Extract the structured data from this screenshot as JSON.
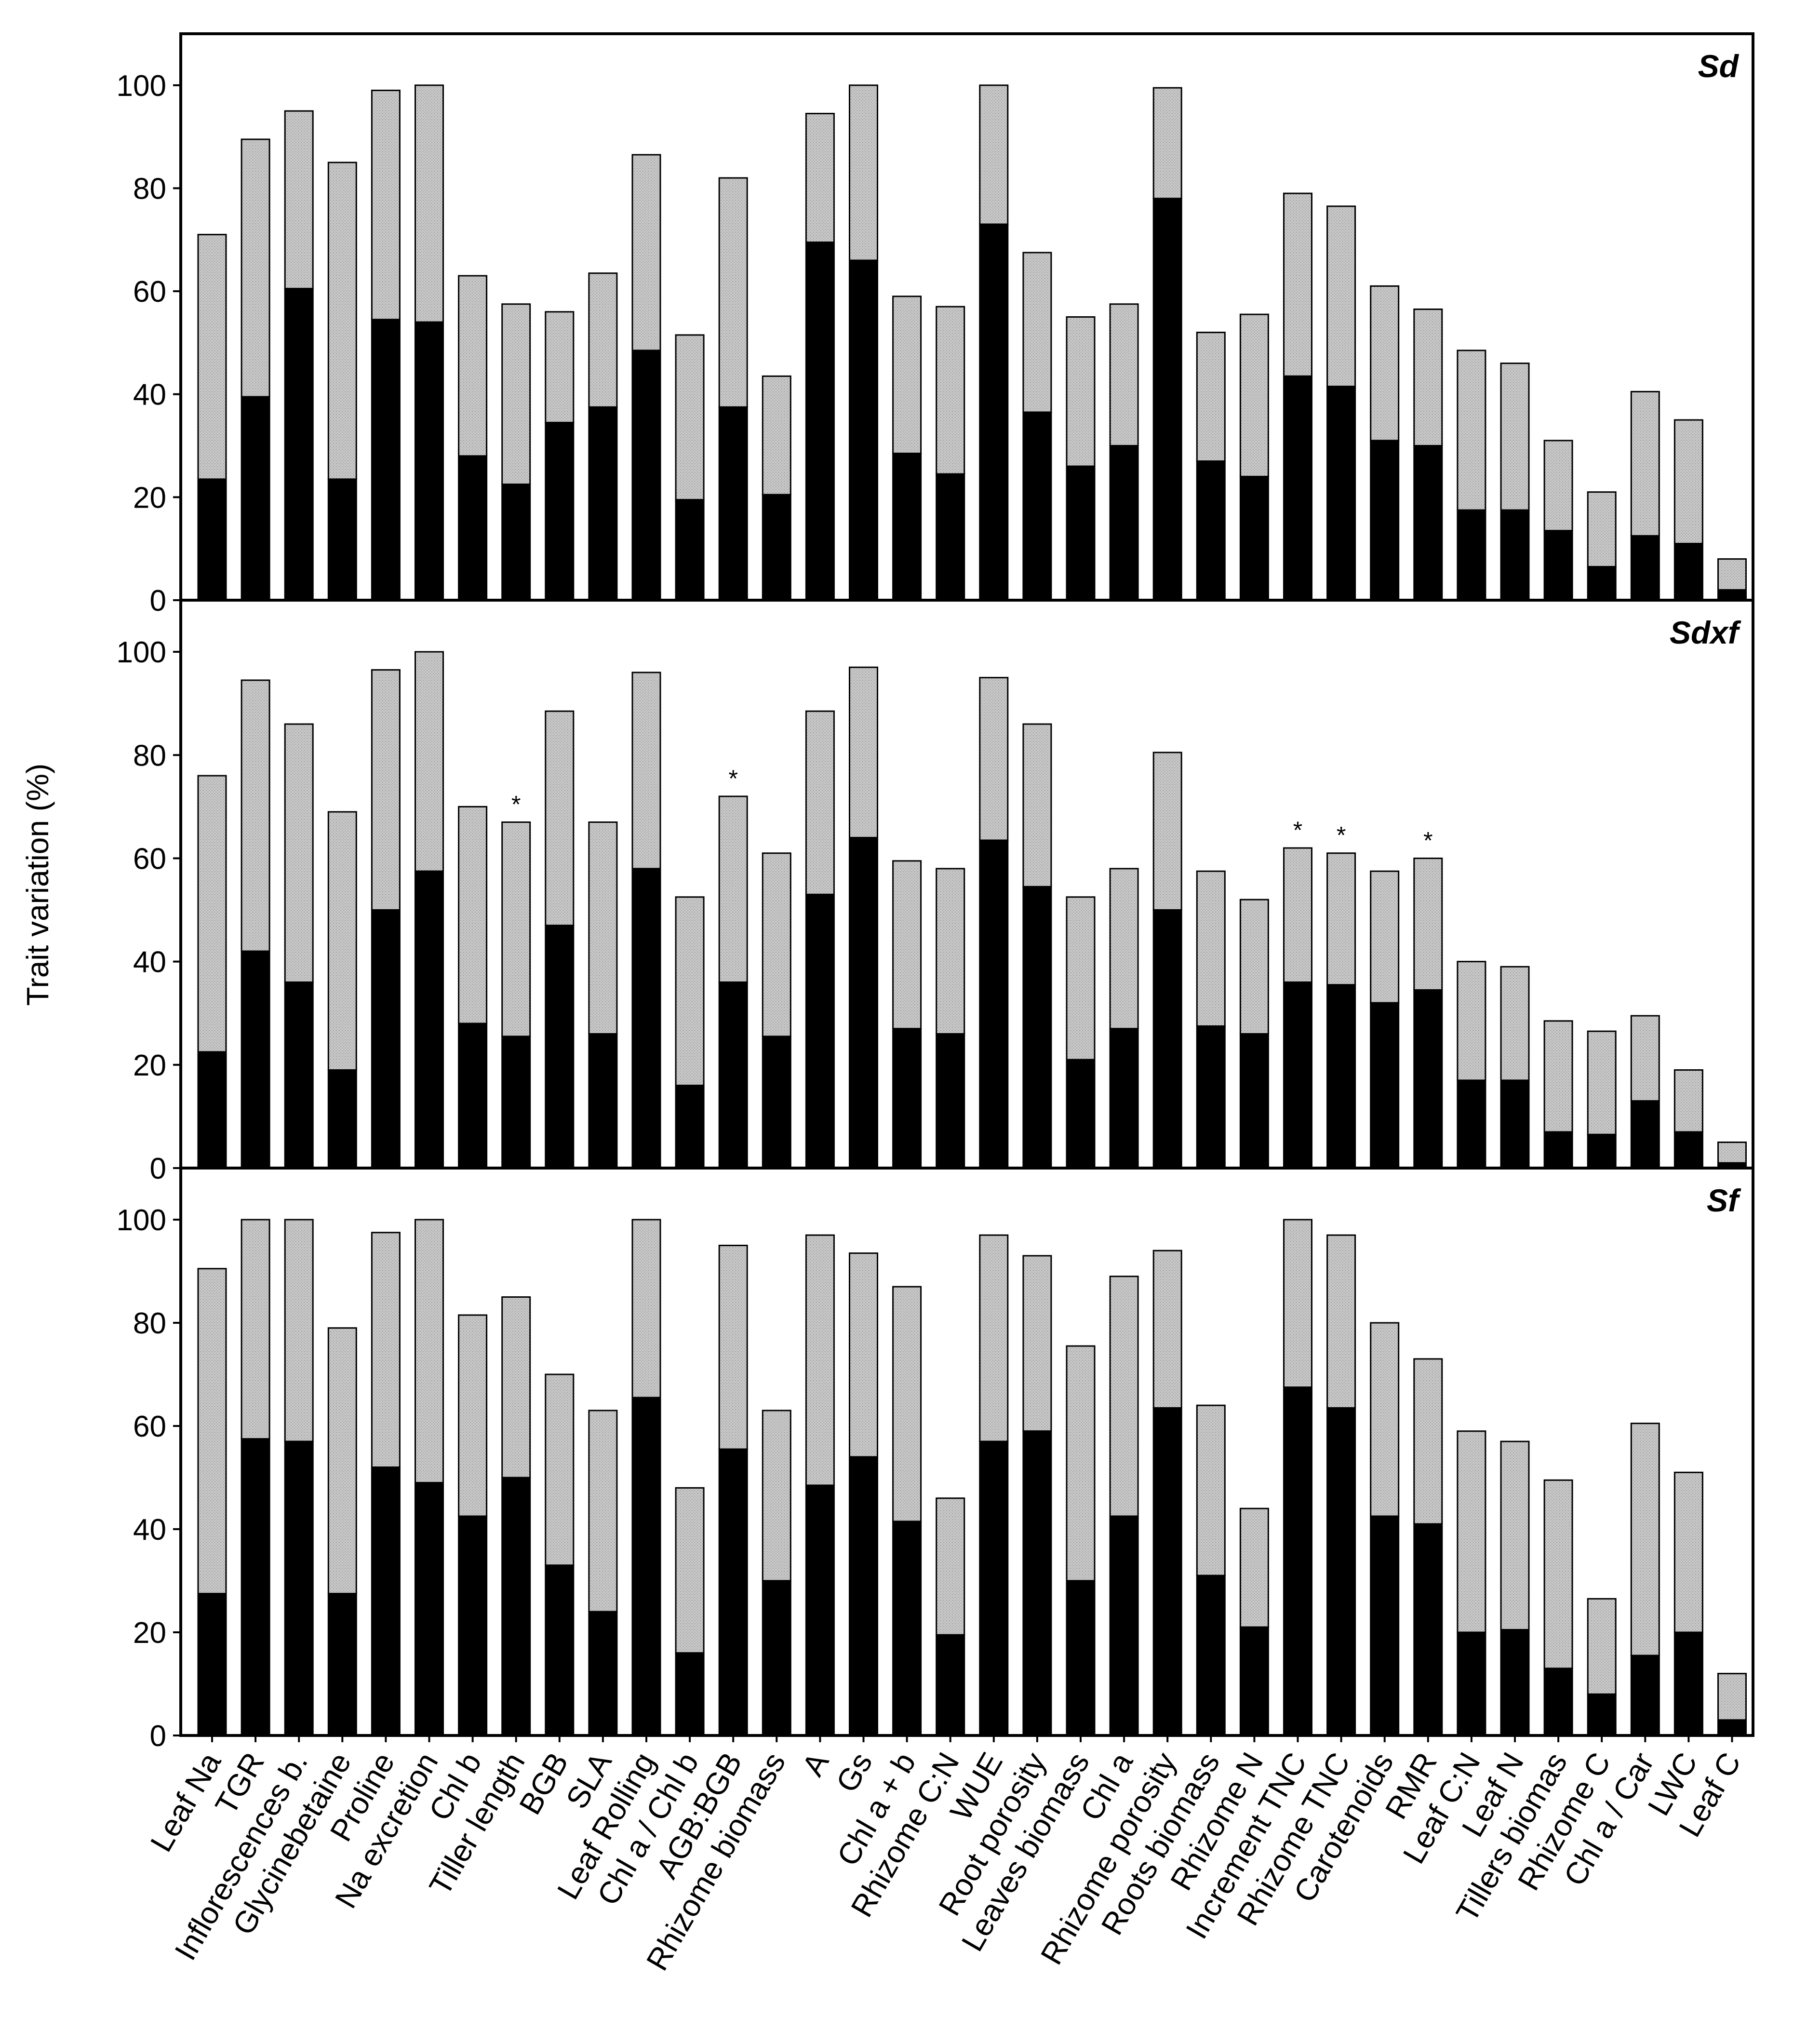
{
  "chart_data": {
    "type": "bar",
    "stacked": true,
    "ylabel": "Trait variation (%)",
    "ylim": [
      0,
      110
    ],
    "yticks": [
      0,
      20,
      40,
      60,
      80,
      100
    ],
    "colors": {
      "lower": "#000000",
      "upper": "#c4c4c4",
      "outline": "#000000"
    },
    "categories": [
      "Leaf Na",
      "TGR",
      "Inflorescences b.",
      "Glycinebetaine",
      "Proline",
      "Na excretion",
      "Chl b",
      "Tiller length",
      "BGB",
      "SLA",
      "Leaf Rolling",
      "Chl a / Chl b",
      "AGB:BGB",
      "Rhizome biomass",
      "A",
      "Gs",
      "Chl a + b",
      "Rhizome C:N",
      "WUE",
      "Root porosity",
      "Leaves biomass",
      "Chl a",
      "Rhizome porosity",
      "Roots biomass",
      "Rhizome N",
      "Increment TNC",
      "Rhizome TNC",
      "Carotenoids",
      "RMR",
      "Leaf C:N",
      "Leaf N",
      "Tillers biomas",
      "Rhizome C",
      "Chl a / Car",
      "LWC",
      "Leaf C"
    ],
    "panels": [
      {
        "label": "Sd",
        "lower": [
          23.5,
          39.5,
          60.5,
          23.5,
          54.5,
          54,
          28,
          22.5,
          34.5,
          37.5,
          48.5,
          19.5,
          37.5,
          20.5,
          69.5,
          66,
          28.5,
          24.5,
          73,
          36.5,
          26,
          30,
          78,
          27,
          24,
          43.5,
          41.5,
          31,
          30,
          17.5,
          17.5,
          13.5,
          6.5,
          12.5,
          11,
          2
        ],
        "total": [
          71,
          89.5,
          95,
          85,
          99,
          100,
          63,
          57.5,
          56,
          63.5,
          86.5,
          51.5,
          82,
          43.5,
          94.5,
          100,
          59,
          57,
          100,
          67.5,
          55,
          57.5,
          99.5,
          52,
          55.5,
          79,
          76.5,
          61,
          56.5,
          48.5,
          46,
          31,
          21,
          40.5,
          35,
          8
        ],
        "stars": []
      },
      {
        "label": "Sdxf",
        "lower": [
          22.5,
          42,
          36,
          19,
          50,
          57.5,
          28,
          25.5,
          47,
          26,
          58,
          16,
          36,
          25.5,
          53,
          64,
          27,
          26,
          63.5,
          54.5,
          21,
          27,
          50,
          27.5,
          26,
          36,
          35.5,
          32,
          34.5,
          17,
          17,
          7,
          6.5,
          13,
          7,
          1
        ],
        "total": [
          76,
          94.5,
          86,
          69,
          96.5,
          100,
          70,
          67,
          88.5,
          67,
          96,
          52.5,
          72,
          61,
          88.5,
          97,
          59.5,
          58,
          95,
          86,
          52.5,
          58,
          80.5,
          57.5,
          52,
          62,
          61,
          57.5,
          60,
          40,
          39,
          28.5,
          26.5,
          29.5,
          19,
          5
        ],
        "stars": [
          7,
          12,
          25,
          26,
          28
        ]
      },
      {
        "label": "Sf",
        "lower": [
          27.5,
          57.5,
          57,
          27.5,
          52,
          49,
          42.5,
          50,
          33,
          24,
          65.5,
          16,
          55.5,
          30,
          48.5,
          54,
          41.5,
          19.5,
          57,
          59,
          30,
          42.5,
          63.5,
          31,
          21,
          67.5,
          63.5,
          42.5,
          41,
          20,
          20.5,
          13,
          8,
          15.5,
          20,
          3
        ],
        "total": [
          90.5,
          100,
          100,
          79,
          97.5,
          100,
          81.5,
          85,
          70,
          63,
          100,
          48,
          95,
          63,
          97,
          93.5,
          87,
          46,
          97,
          93,
          75.5,
          89,
          94,
          64,
          44,
          100,
          97,
          80,
          73,
          59,
          57,
          49.5,
          26.5,
          60.5,
          51,
          12
        ],
        "stars": []
      }
    ]
  }
}
